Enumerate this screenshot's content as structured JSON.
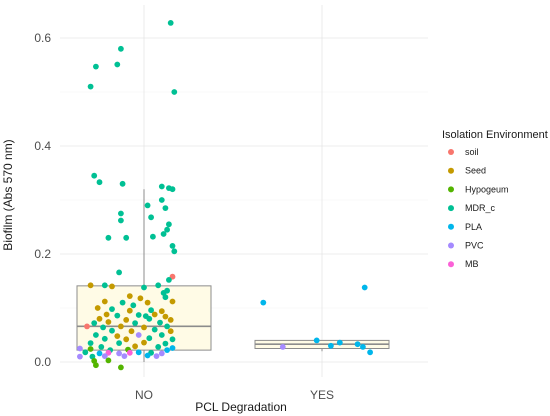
{
  "chart_data": {
    "type": "box-scatter",
    "title": "",
    "xlabel": "PCL Degradation",
    "ylabel": "Biofilm (Abs 570 nm)",
    "categories": [
      "NO",
      "YES"
    ],
    "ylim": [
      -0.02,
      0.65
    ],
    "yticks": [
      "0.0",
      "0.2",
      "0.4",
      "0.6"
    ],
    "grid": true,
    "legend": {
      "title": "Isolation Environment",
      "placement": "right",
      "entries": [
        {
          "name": "soil",
          "color": "#F8766D"
        },
        {
          "name": "Seed",
          "color": "#C49A00"
        },
        {
          "name": "Hypogeum",
          "color": "#53B400"
        },
        {
          "name": "MDR_c",
          "color": "#00C094"
        },
        {
          "name": "PLA",
          "color": "#00B6EB"
        },
        {
          "name": "PVC",
          "color": "#A58AFF"
        },
        {
          "name": "MB",
          "color": "#FB61D7"
        }
      ]
    },
    "boxes": [
      {
        "category": "NO",
        "min": 0.0,
        "q1": 0.022,
        "median": 0.066,
        "q3": 0.141,
        "max": 0.32
      },
      {
        "category": "YES",
        "min": 0.02,
        "q1": 0.025,
        "median": 0.033,
        "q3": 0.04,
        "max": 0.04
      }
    ],
    "points": [
      {
        "x": "NO",
        "jitter": 0.15,
        "y": 0.628,
        "group": "MDR_c"
      },
      {
        "x": "NO",
        "jitter": -0.13,
        "y": 0.58,
        "group": "MDR_c"
      },
      {
        "x": "NO",
        "jitter": -0.27,
        "y": 0.547,
        "group": "MDR_c"
      },
      {
        "x": "NO",
        "jitter": -0.15,
        "y": 0.551,
        "group": "MDR_c"
      },
      {
        "x": "NO",
        "jitter": -0.3,
        "y": 0.51,
        "group": "MDR_c"
      },
      {
        "x": "NO",
        "jitter": 0.17,
        "y": 0.5,
        "group": "MDR_c"
      },
      {
        "x": "NO",
        "jitter": -0.28,
        "y": 0.345,
        "group": "MDR_c"
      },
      {
        "x": "NO",
        "jitter": -0.25,
        "y": 0.333,
        "group": "MDR_c"
      },
      {
        "x": "NO",
        "jitter": -0.12,
        "y": 0.33,
        "group": "MDR_c"
      },
      {
        "x": "NO",
        "jitter": 0.1,
        "y": 0.325,
        "group": "MDR_c"
      },
      {
        "x": "NO",
        "jitter": 0.14,
        "y": 0.322,
        "group": "MDR_c"
      },
      {
        "x": "NO",
        "jitter": 0.16,
        "y": 0.32,
        "group": "MDR_c"
      },
      {
        "x": "NO",
        "jitter": 0.1,
        "y": 0.3,
        "group": "MDR_c"
      },
      {
        "x": "NO",
        "jitter": 0.02,
        "y": 0.29,
        "group": "MDR_c"
      },
      {
        "x": "NO",
        "jitter": 0.12,
        "y": 0.285,
        "group": "MDR_c"
      },
      {
        "x": "NO",
        "jitter": -0.13,
        "y": 0.275,
        "group": "MDR_c"
      },
      {
        "x": "NO",
        "jitter": 0.04,
        "y": 0.268,
        "group": "MDR_c"
      },
      {
        "x": "NO",
        "jitter": -0.13,
        "y": 0.262,
        "group": "MDR_c"
      },
      {
        "x": "NO",
        "jitter": 0.14,
        "y": 0.255,
        "group": "MDR_c"
      },
      {
        "x": "NO",
        "jitter": 0.13,
        "y": 0.245,
        "group": "MDR_c"
      },
      {
        "x": "NO",
        "jitter": 0.11,
        "y": 0.237,
        "group": "MDR_c"
      },
      {
        "x": "NO",
        "jitter": -0.2,
        "y": 0.23,
        "group": "MDR_c"
      },
      {
        "x": "NO",
        "jitter": -0.1,
        "y": 0.23,
        "group": "MDR_c"
      },
      {
        "x": "NO",
        "jitter": 0.05,
        "y": 0.232,
        "group": "MDR_c"
      },
      {
        "x": "NO",
        "jitter": 0.16,
        "y": 0.215,
        "group": "MDR_c"
      },
      {
        "x": "NO",
        "jitter": 0.17,
        "y": 0.205,
        "group": "MDR_c"
      },
      {
        "x": "NO",
        "jitter": -0.14,
        "y": 0.166,
        "group": "MDR_c"
      },
      {
        "x": "NO",
        "jitter": 0.16,
        "y": 0.158,
        "group": "soil"
      },
      {
        "x": "NO",
        "jitter": 0.14,
        "y": 0.152,
        "group": "MDR_c"
      },
      {
        "x": "NO",
        "jitter": -0.3,
        "y": 0.142,
        "group": "Seed"
      },
      {
        "x": "NO",
        "jitter": -0.22,
        "y": 0.142,
        "group": "MDR_c"
      },
      {
        "x": "NO",
        "jitter": -0.18,
        "y": 0.14,
        "group": "Seed"
      },
      {
        "x": "NO",
        "jitter": 0.0,
        "y": 0.138,
        "group": "MDR_c"
      },
      {
        "x": "NO",
        "jitter": 0.08,
        "y": 0.142,
        "group": "MDR_c"
      },
      {
        "x": "NO",
        "jitter": 0.13,
        "y": 0.132,
        "group": "MDR_c"
      },
      {
        "x": "NO",
        "jitter": 0.11,
        "y": 0.128,
        "group": "MDR_c"
      },
      {
        "x": "NO",
        "jitter": -0.08,
        "y": 0.122,
        "group": "Seed"
      },
      {
        "x": "NO",
        "jitter": -0.02,
        "y": 0.118,
        "group": "Seed"
      },
      {
        "x": "NO",
        "jitter": 0.12,
        "y": 0.12,
        "group": "MDR_c"
      },
      {
        "x": "NO",
        "jitter": -0.22,
        "y": 0.112,
        "group": "Seed"
      },
      {
        "x": "NO",
        "jitter": -0.12,
        "y": 0.11,
        "group": "MDR_c"
      },
      {
        "x": "NO",
        "jitter": -0.06,
        "y": 0.105,
        "group": "MDR_c"
      },
      {
        "x": "NO",
        "jitter": 0.02,
        "y": 0.11,
        "group": "Seed"
      },
      {
        "x": "NO",
        "jitter": 0.16,
        "y": 0.112,
        "group": "Seed"
      },
      {
        "x": "NO",
        "jitter": -0.26,
        "y": 0.1,
        "group": "Seed"
      },
      {
        "x": "NO",
        "jitter": -0.18,
        "y": 0.098,
        "group": "MDR_c"
      },
      {
        "x": "NO",
        "jitter": -0.08,
        "y": 0.095,
        "group": "Seed"
      },
      {
        "x": "NO",
        "jitter": 0.04,
        "y": 0.096,
        "group": "MDR_c"
      },
      {
        "x": "NO",
        "jitter": 0.1,
        "y": 0.094,
        "group": "Seed"
      },
      {
        "x": "NO",
        "jitter": -0.21,
        "y": 0.088,
        "group": "Seed"
      },
      {
        "x": "NO",
        "jitter": -0.15,
        "y": 0.086,
        "group": "MDR_c"
      },
      {
        "x": "NO",
        "jitter": -0.03,
        "y": 0.087,
        "group": "MDR_c"
      },
      {
        "x": "NO",
        "jitter": 0.01,
        "y": 0.085,
        "group": "MDR_c"
      },
      {
        "x": "NO",
        "jitter": 0.06,
        "y": 0.088,
        "group": "Seed"
      },
      {
        "x": "NO",
        "jitter": 0.12,
        "y": 0.084,
        "group": "Seed"
      },
      {
        "x": "NO",
        "jitter": -0.25,
        "y": 0.08,
        "group": "Seed"
      },
      {
        "x": "NO",
        "jitter": -0.1,
        "y": 0.078,
        "group": "Seed"
      },
      {
        "x": "NO",
        "jitter": 0.03,
        "y": 0.08,
        "group": "MDR_c"
      },
      {
        "x": "NO",
        "jitter": 0.15,
        "y": 0.078,
        "group": "Seed"
      },
      {
        "x": "NO",
        "jitter": -0.28,
        "y": 0.072,
        "group": "MDR_c"
      },
      {
        "x": "NO",
        "jitter": -0.2,
        "y": 0.074,
        "group": "Seed"
      },
      {
        "x": "NO",
        "jitter": -0.05,
        "y": 0.072,
        "group": "MDR_c"
      },
      {
        "x": "NO",
        "jitter": 0.09,
        "y": 0.073,
        "group": "MDR_c"
      },
      {
        "x": "NO",
        "jitter": -0.32,
        "y": 0.066,
        "group": "soil"
      },
      {
        "x": "NO",
        "jitter": -0.23,
        "y": 0.064,
        "group": "MDR_c"
      },
      {
        "x": "NO",
        "jitter": -0.13,
        "y": 0.066,
        "group": "Seed"
      },
      {
        "x": "NO",
        "jitter": 0.0,
        "y": 0.064,
        "group": "Seed"
      },
      {
        "x": "NO",
        "jitter": 0.13,
        "y": 0.066,
        "group": "MDR_c"
      },
      {
        "x": "NO",
        "jitter": -0.18,
        "y": 0.058,
        "group": "MDR_c"
      },
      {
        "x": "NO",
        "jitter": -0.07,
        "y": 0.057,
        "group": "Seed"
      },
      {
        "x": "NO",
        "jitter": 0.06,
        "y": 0.06,
        "group": "MDR_c"
      },
      {
        "x": "NO",
        "jitter": 0.15,
        "y": 0.057,
        "group": "Seed"
      },
      {
        "x": "NO",
        "jitter": -0.27,
        "y": 0.05,
        "group": "MDR_c"
      },
      {
        "x": "NO",
        "jitter": -0.15,
        "y": 0.048,
        "group": "Seed"
      },
      {
        "x": "NO",
        "jitter": -0.03,
        "y": 0.05,
        "group": "PVC"
      },
      {
        "x": "NO",
        "jitter": 0.1,
        "y": 0.05,
        "group": "MDR_c"
      },
      {
        "x": "NO",
        "jitter": -0.22,
        "y": 0.043,
        "group": "MDR_c"
      },
      {
        "x": "NO",
        "jitter": -0.1,
        "y": 0.042,
        "group": "Seed"
      },
      {
        "x": "NO",
        "jitter": 0.03,
        "y": 0.044,
        "group": "MDR_c"
      },
      {
        "x": "NO",
        "jitter": 0.16,
        "y": 0.042,
        "group": "MDR_c"
      },
      {
        "x": "NO",
        "jitter": -0.3,
        "y": 0.035,
        "group": "MDR_c"
      },
      {
        "x": "NO",
        "jitter": -0.14,
        "y": 0.035,
        "group": "MDR_c"
      },
      {
        "x": "NO",
        "jitter": 0.0,
        "y": 0.036,
        "group": "Seed"
      },
      {
        "x": "NO",
        "jitter": 0.12,
        "y": 0.034,
        "group": "MDR_c"
      },
      {
        "x": "NO",
        "jitter": -0.24,
        "y": 0.028,
        "group": "MDR_c"
      },
      {
        "x": "NO",
        "jitter": -0.05,
        "y": 0.029,
        "group": "Seed"
      },
      {
        "x": "NO",
        "jitter": 0.08,
        "y": 0.028,
        "group": "MDR_c"
      },
      {
        "x": "NO",
        "jitter": -0.36,
        "y": 0.025,
        "group": "PVC"
      },
      {
        "x": "NO",
        "jitter": -0.3,
        "y": 0.024,
        "group": "Hypogeum"
      },
      {
        "x": "NO",
        "jitter": -0.19,
        "y": 0.022,
        "group": "MDR_c"
      },
      {
        "x": "NO",
        "jitter": -0.09,
        "y": 0.023,
        "group": "Hypogeum"
      },
      {
        "x": "NO",
        "jitter": 0.13,
        "y": 0.022,
        "group": "PLA"
      },
      {
        "x": "NO",
        "jitter": 0.16,
        "y": 0.026,
        "group": "PLA"
      },
      {
        "x": "NO",
        "jitter": -0.33,
        "y": 0.018,
        "group": "MDR_c"
      },
      {
        "x": "NO",
        "jitter": -0.25,
        "y": 0.016,
        "group": "PLA"
      },
      {
        "x": "NO",
        "jitter": -0.2,
        "y": 0.017,
        "group": "MB"
      },
      {
        "x": "NO",
        "jitter": -0.14,
        "y": 0.016,
        "group": "PVC"
      },
      {
        "x": "NO",
        "jitter": -0.08,
        "y": 0.017,
        "group": "MB"
      },
      {
        "x": "NO",
        "jitter": -0.03,
        "y": 0.018,
        "group": "PLA"
      },
      {
        "x": "NO",
        "jitter": 0.04,
        "y": 0.017,
        "group": "MDR_c"
      },
      {
        "x": "NO",
        "jitter": 0.1,
        "y": 0.016,
        "group": "PVC"
      },
      {
        "x": "NO",
        "jitter": -0.29,
        "y": 0.01,
        "group": "MDR_c"
      },
      {
        "x": "NO",
        "jitter": -0.36,
        "y": 0.01,
        "group": "PVC"
      },
      {
        "x": "NO",
        "jitter": -0.22,
        "y": 0.011,
        "group": "PVC"
      },
      {
        "x": "NO",
        "jitter": -0.11,
        "y": 0.011,
        "group": "PVC"
      },
      {
        "x": "NO",
        "jitter": 0.02,
        "y": 0.012,
        "group": "PLA"
      },
      {
        "x": "NO",
        "jitter": 0.07,
        "y": 0.011,
        "group": "PVC"
      },
      {
        "x": "NO",
        "jitter": -0.28,
        "y": 0.002,
        "group": "Hypogeum"
      },
      {
        "x": "NO",
        "jitter": -0.2,
        "y": 0.003,
        "group": "Hypogeum"
      },
      {
        "x": "NO",
        "jitter": -0.27,
        "y": -0.006,
        "group": "Hypogeum"
      },
      {
        "x": "NO",
        "jitter": -0.13,
        "y": -0.01,
        "group": "Hypogeum"
      },
      {
        "x": "YES",
        "jitter": -0.33,
        "y": 0.11,
        "group": "PLA"
      },
      {
        "x": "YES",
        "jitter": 0.24,
        "y": 0.138,
        "group": "PLA"
      },
      {
        "x": "YES",
        "jitter": 0.1,
        "y": 0.036,
        "group": "PLA"
      },
      {
        "x": "YES",
        "jitter": -0.03,
        "y": 0.04,
        "group": "PLA"
      },
      {
        "x": "YES",
        "jitter": 0.05,
        "y": 0.03,
        "group": "PLA"
      },
      {
        "x": "YES",
        "jitter": 0.2,
        "y": 0.033,
        "group": "PLA"
      },
      {
        "x": "YES",
        "jitter": 0.23,
        "y": 0.028,
        "group": "PLA"
      },
      {
        "x": "YES",
        "jitter": 0.27,
        "y": 0.018,
        "group": "PLA"
      },
      {
        "x": "YES",
        "jitter": -0.22,
        "y": 0.028,
        "group": "PVC"
      }
    ]
  }
}
